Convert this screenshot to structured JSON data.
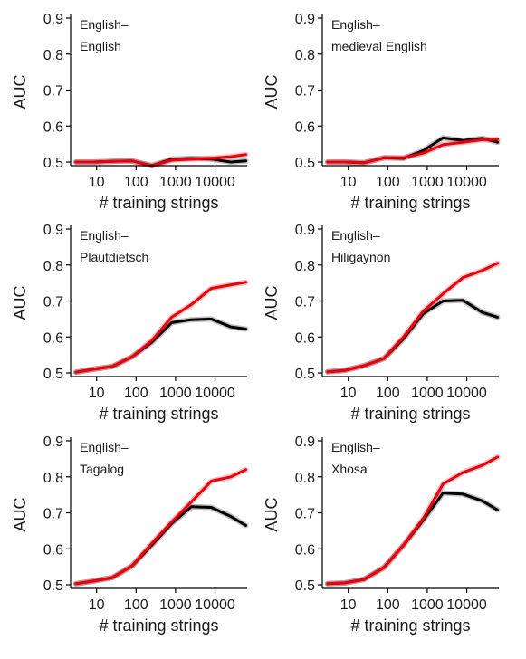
{
  "chart_data": [
    {
      "type": "line",
      "title_lines": [
        "English–",
        "English"
      ],
      "xlabel": "# training strings",
      "ylabel": "AUC",
      "x_scale": "log",
      "xticks": [
        10,
        100,
        1000,
        10000
      ],
      "xtick_labels": [
        "10",
        "100",
        "1000",
        "10000"
      ],
      "yticks": [
        0.5,
        0.6,
        0.7,
        0.8,
        0.9
      ],
      "ytick_labels": [
        "0.5",
        "0.6",
        "0.7",
        "0.8",
        "0.9"
      ],
      "ylim": [
        0.49,
        0.9
      ],
      "grid": false,
      "x": [
        3,
        8,
        25,
        80,
        250,
        800,
        2500,
        8000,
        25000,
        60000
      ],
      "series": [
        {
          "color": "#000000",
          "values": [
            0.5,
            0.5,
            0.502,
            0.503,
            0.49,
            0.508,
            0.51,
            0.508,
            0.5,
            0.503
          ]
        },
        {
          "color": "#e8000b",
          "values": [
            0.5,
            0.5,
            0.502,
            0.503,
            0.49,
            0.505,
            0.508,
            0.511,
            0.515,
            0.521
          ]
        }
      ]
    },
    {
      "type": "line",
      "title_lines": [
        "English–",
        "medieval English"
      ],
      "xlabel": "# training strings",
      "ylabel": "AUC",
      "x_scale": "log",
      "xticks": [
        10,
        100,
        1000,
        10000
      ],
      "xtick_labels": [
        "10",
        "100",
        "1000",
        "10000"
      ],
      "yticks": [
        0.5,
        0.6,
        0.7,
        0.8,
        0.9
      ],
      "ytick_labels": [
        "0.5",
        "0.6",
        "0.7",
        "0.8",
        "0.9"
      ],
      "ylim": [
        0.49,
        0.9
      ],
      "grid": false,
      "x": [
        3,
        8,
        25,
        80,
        250,
        800,
        2500,
        8000,
        25000,
        60000
      ],
      "series": [
        {
          "color": "#000000",
          "values": [
            0.5,
            0.5,
            0.498,
            0.512,
            0.51,
            0.532,
            0.567,
            0.56,
            0.566,
            0.555
          ]
        },
        {
          "color": "#e8000b",
          "values": [
            0.5,
            0.5,
            0.498,
            0.512,
            0.512,
            0.525,
            0.548,
            0.555,
            0.562,
            0.563
          ]
        }
      ]
    },
    {
      "type": "line",
      "title_lines": [
        "English–",
        "Plautdietsch"
      ],
      "xlabel": "# training strings",
      "ylabel": "AUC",
      "x_scale": "log",
      "xticks": [
        10,
        100,
        1000,
        10000
      ],
      "xtick_labels": [
        "10",
        "100",
        "1000",
        "10000"
      ],
      "yticks": [
        0.5,
        0.6,
        0.7,
        0.8,
        0.9
      ],
      "ytick_labels": [
        "0.5",
        "0.6",
        "0.7",
        "0.8",
        "0.9"
      ],
      "ylim": [
        0.49,
        0.9
      ],
      "grid": false,
      "x": [
        3,
        8,
        25,
        80,
        250,
        800,
        2500,
        8000,
        25000,
        60000
      ],
      "series": [
        {
          "color": "#000000",
          "values": [
            0.502,
            0.51,
            0.518,
            0.545,
            0.585,
            0.64,
            0.648,
            0.65,
            0.628,
            0.622
          ]
        },
        {
          "color": "#e8000b",
          "values": [
            0.502,
            0.51,
            0.518,
            0.545,
            0.59,
            0.655,
            0.69,
            0.735,
            0.745,
            0.752
          ]
        }
      ]
    },
    {
      "type": "line",
      "title_lines": [
        "English–",
        "Hiligaynon"
      ],
      "xlabel": "# training strings",
      "ylabel": "AUC",
      "x_scale": "log",
      "xticks": [
        10,
        100,
        1000,
        10000
      ],
      "xtick_labels": [
        "10",
        "100",
        "1000",
        "10000"
      ],
      "yticks": [
        0.5,
        0.6,
        0.7,
        0.8,
        0.9
      ],
      "ytick_labels": [
        "0.5",
        "0.6",
        "0.7",
        "0.8",
        "0.9"
      ],
      "ylim": [
        0.49,
        0.9
      ],
      "grid": false,
      "x": [
        3,
        8,
        25,
        80,
        250,
        800,
        2500,
        8000,
        25000,
        60000
      ],
      "series": [
        {
          "color": "#000000",
          "values": [
            0.503,
            0.507,
            0.52,
            0.54,
            0.595,
            0.665,
            0.7,
            0.702,
            0.668,
            0.655
          ]
        },
        {
          "color": "#e8000b",
          "values": [
            0.503,
            0.507,
            0.52,
            0.54,
            0.6,
            0.672,
            0.72,
            0.765,
            0.785,
            0.805
          ]
        }
      ]
    },
    {
      "type": "line",
      "title_lines": [
        "English–",
        "Tagalog"
      ],
      "xlabel": "# training strings",
      "ylabel": "AUC",
      "x_scale": "log",
      "xticks": [
        10,
        100,
        1000,
        10000
      ],
      "xtick_labels": [
        "10",
        "100",
        "1000",
        "10000"
      ],
      "yticks": [
        0.5,
        0.6,
        0.7,
        0.8,
        0.9
      ],
      "ytick_labels": [
        "0.5",
        "0.6",
        "0.7",
        "0.8",
        "0.9"
      ],
      "ylim": [
        0.49,
        0.9
      ],
      "grid": false,
      "x": [
        3,
        8,
        25,
        80,
        250,
        800,
        2500,
        8000,
        25000,
        60000
      ],
      "series": [
        {
          "color": "#000000",
          "values": [
            0.503,
            0.51,
            0.52,
            0.553,
            0.61,
            0.67,
            0.717,
            0.715,
            0.69,
            0.665
          ]
        },
        {
          "color": "#e8000b",
          "values": [
            0.503,
            0.51,
            0.52,
            0.553,
            0.615,
            0.675,
            0.73,
            0.788,
            0.8,
            0.82
          ]
        }
      ]
    },
    {
      "type": "line",
      "title_lines": [
        "English–",
        "Xhosa"
      ],
      "xlabel": "# training strings",
      "ylabel": "AUC",
      "x_scale": "log",
      "xticks": [
        10,
        100,
        1000,
        10000
      ],
      "xtick_labels": [
        "10",
        "100",
        "1000",
        "10000"
      ],
      "yticks": [
        0.5,
        0.6,
        0.7,
        0.8,
        0.9
      ],
      "ytick_labels": [
        "0.5",
        "0.6",
        "0.7",
        "0.8",
        "0.9"
      ],
      "ylim": [
        0.49,
        0.9
      ],
      "grid": false,
      "x": [
        3,
        8,
        25,
        80,
        250,
        800,
        2500,
        8000,
        25000,
        60000
      ],
      "series": [
        {
          "color": "#000000",
          "values": [
            0.503,
            0.505,
            0.515,
            0.548,
            0.61,
            0.68,
            0.755,
            0.752,
            0.733,
            0.708
          ]
        },
        {
          "color": "#e8000b",
          "values": [
            0.503,
            0.505,
            0.515,
            0.548,
            0.61,
            0.685,
            0.78,
            0.812,
            0.832,
            0.855
          ]
        }
      ]
    }
  ]
}
